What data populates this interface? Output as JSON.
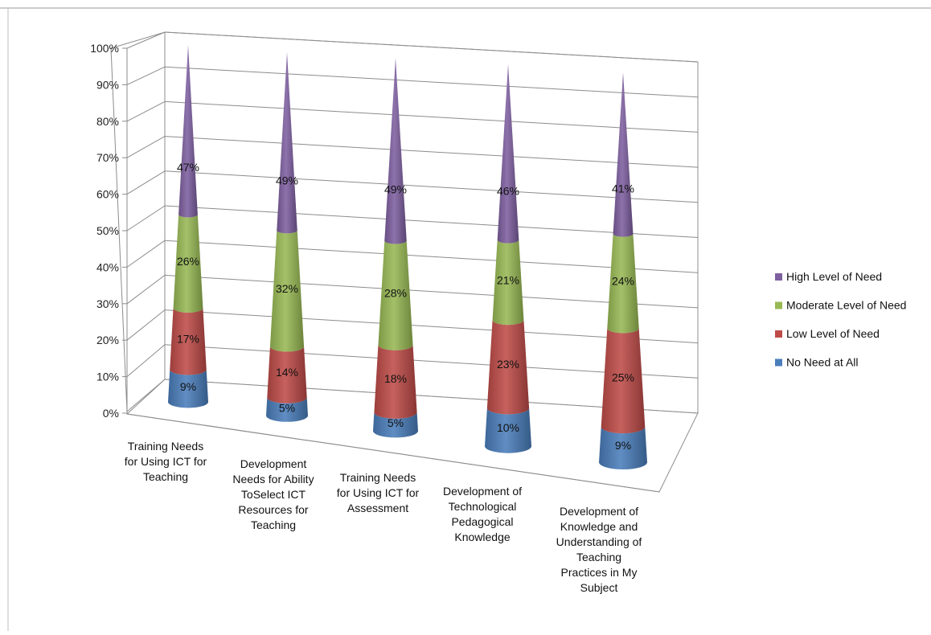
{
  "chart_data": {
    "type": "bar",
    "style": "3d-stacked-cone",
    "categories": [
      [
        "Training Needs",
        "for Using ICT for",
        "Teaching"
      ],
      [
        "Development",
        "Needs for Ability",
        "ToSelect ICT",
        "Resources for",
        "Teaching"
      ],
      [
        "Training Needs",
        "for Using ICT for",
        "Assessment"
      ],
      [
        "Development of",
        "Technological",
        "Pedagogical",
        "Knowledge"
      ],
      [
        "Development of",
        "Knowledge and",
        "Understanding of",
        "Teaching",
        "Practices in My",
        "Subject"
      ]
    ],
    "series": [
      {
        "name": "No Need at All",
        "color": "#4a7ebb",
        "values": [
          9,
          5,
          5,
          10,
          9
        ],
        "labels": [
          "9%",
          "5%",
          "5%",
          "10%",
          "9%"
        ]
      },
      {
        "name": "Low Level of Need",
        "color": "#be4b48",
        "values": [
          17,
          14,
          18,
          23,
          25
        ],
        "labels": [
          "17%",
          "14%",
          "18%",
          "23%",
          "25%"
        ]
      },
      {
        "name": "Moderate Level of Need",
        "color": "#98b954",
        "values": [
          26,
          32,
          28,
          21,
          24
        ],
        "labels": [
          "26%",
          "32%",
          "28%",
          "21%",
          "24%"
        ]
      },
      {
        "name": "High Level of Need",
        "color": "#7d5fa0",
        "values": [
          47,
          49,
          49,
          46,
          41
        ],
        "labels": [
          "47%",
          "49%",
          "49%",
          "46%",
          "41%"
        ]
      }
    ],
    "y_ticks": [
      "0%",
      "10%",
      "20%",
      "30%",
      "40%",
      "50%",
      "60%",
      "70%",
      "80%",
      "90%",
      "100%"
    ],
    "ylim": [
      0,
      100
    ],
    "grid": true,
    "legend_position": "right",
    "legend_order": [
      "High Level of Need",
      "Moderate Level of Need",
      "Low Level of Need",
      "No Need at All"
    ]
  }
}
